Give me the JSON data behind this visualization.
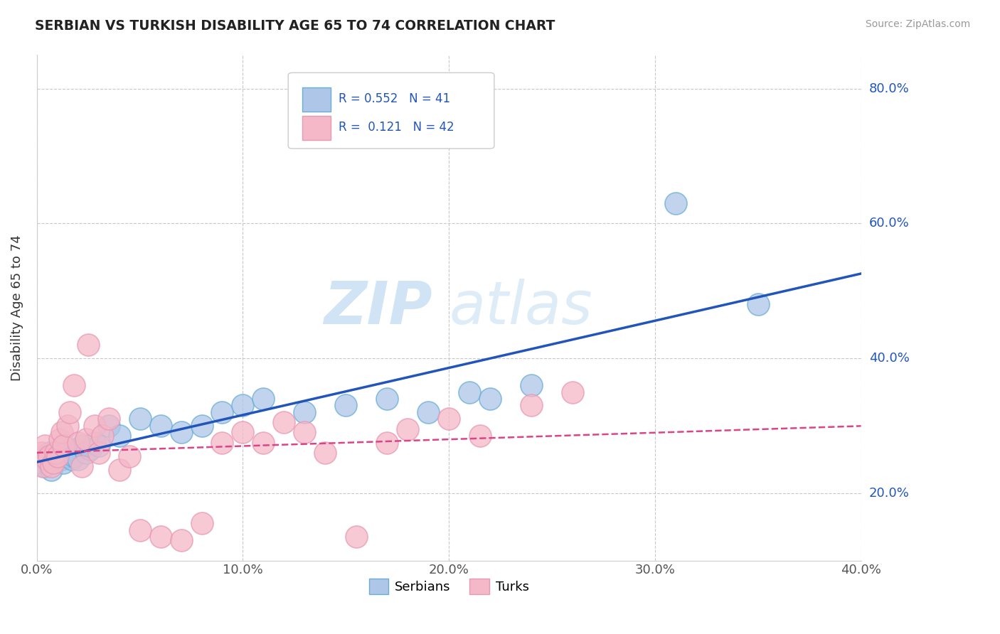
{
  "title": "SERBIAN VS TURKISH DISABILITY AGE 65 TO 74 CORRELATION CHART",
  "source": "Source: ZipAtlas.com",
  "ylabel": "Disability Age 65 to 74",
  "xlim": [
    0.0,
    0.4
  ],
  "ylim": [
    0.1,
    0.85
  ],
  "xticks": [
    0.0,
    0.1,
    0.2,
    0.3,
    0.4
  ],
  "xtick_labels": [
    "0.0%",
    "10.0%",
    "20.0%",
    "30.0%",
    "40.0%"
  ],
  "yticks": [
    0.2,
    0.4,
    0.6,
    0.8
  ],
  "ytick_labels": [
    "20.0%",
    "40.0%",
    "60.0%",
    "80.0%"
  ],
  "serbian_color": "#aec6e8",
  "turkish_color": "#f4b8c8",
  "serbian_edge": "#6aaed6",
  "turkish_edge": "#e899b4",
  "trend_serbian_color": "#2255bb",
  "trend_turkish_color": "#dd4488",
  "R_serbian": 0.552,
  "N_serbian": 41,
  "R_turkish": 0.121,
  "N_turkish": 42,
  "background_color": "#ffffff",
  "grid_color": "#c8c8c8",
  "title_color": "#222222",
  "watermark_color": "#c8e0f4",
  "serbians_x": [
    0.002,
    0.003,
    0.004,
    0.005,
    0.006,
    0.007,
    0.008,
    0.009,
    0.01,
    0.011,
    0.012,
    0.013,
    0.014,
    0.015,
    0.016,
    0.017,
    0.018,
    0.02,
    0.022,
    0.024,
    0.026,
    0.028,
    0.03,
    0.035,
    0.04,
    0.05,
    0.06,
    0.07,
    0.08,
    0.09,
    0.1,
    0.11,
    0.13,
    0.15,
    0.17,
    0.19,
    0.21,
    0.22,
    0.24,
    0.31,
    0.35
  ],
  "serbians_y": [
    0.245,
    0.255,
    0.24,
    0.25,
    0.26,
    0.235,
    0.255,
    0.25,
    0.26,
    0.265,
    0.25,
    0.245,
    0.26,
    0.255,
    0.265,
    0.25,
    0.255,
    0.25,
    0.27,
    0.26,
    0.265,
    0.275,
    0.27,
    0.3,
    0.285,
    0.31,
    0.3,
    0.29,
    0.3,
    0.32,
    0.33,
    0.34,
    0.32,
    0.33,
    0.34,
    0.32,
    0.35,
    0.34,
    0.36,
    0.63,
    0.48
  ],
  "turks_x": [
    0.002,
    0.003,
    0.004,
    0.005,
    0.006,
    0.007,
    0.008,
    0.009,
    0.01,
    0.011,
    0.012,
    0.013,
    0.015,
    0.016,
    0.018,
    0.02,
    0.022,
    0.024,
    0.025,
    0.028,
    0.03,
    0.032,
    0.035,
    0.04,
    0.045,
    0.05,
    0.06,
    0.07,
    0.08,
    0.09,
    0.1,
    0.11,
    0.12,
    0.13,
    0.14,
    0.155,
    0.17,
    0.18,
    0.2,
    0.215,
    0.24,
    0.26
  ],
  "turks_y": [
    0.26,
    0.24,
    0.27,
    0.25,
    0.255,
    0.24,
    0.245,
    0.26,
    0.255,
    0.28,
    0.29,
    0.27,
    0.3,
    0.32,
    0.36,
    0.275,
    0.24,
    0.28,
    0.42,
    0.3,
    0.26,
    0.285,
    0.31,
    0.235,
    0.255,
    0.145,
    0.135,
    0.13,
    0.155,
    0.275,
    0.29,
    0.275,
    0.305,
    0.29,
    0.26,
    0.135,
    0.275,
    0.295,
    0.31,
    0.285,
    0.33,
    0.35
  ]
}
